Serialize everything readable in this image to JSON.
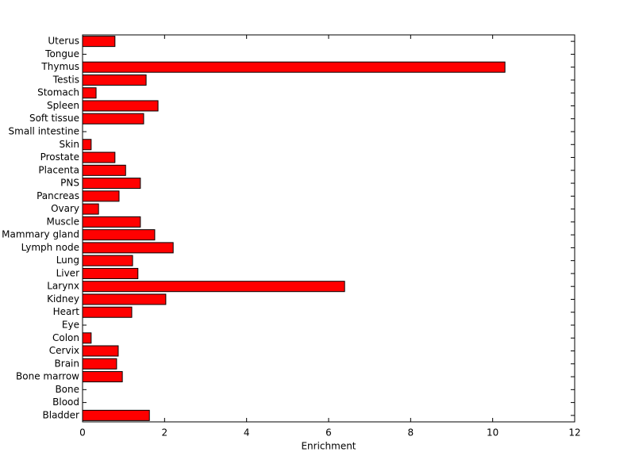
{
  "chart_data": {
    "type": "barh",
    "xlabel": "Enrichment",
    "categories": [
      "Bladder",
      "Blood",
      "Bone",
      "Bone marrow",
      "Brain",
      "Cervix",
      "Colon",
      "Eye",
      "Heart",
      "Kidney",
      "Larynx",
      "Liver",
      "Lung",
      "Lymph node",
      "Mammary gland",
      "Muscle",
      "Ovary",
      "Pancreas",
      "PNS",
      "Placenta",
      "Prostate",
      "Skin",
      "Small intestine",
      "Soft tissue",
      "Spleen",
      "Stomach",
      "Testis",
      "Thymus",
      "Tongue",
      "Uterus"
    ],
    "values": [
      1.63,
      0,
      0,
      0.97,
      0.83,
      0.87,
      0.21,
      0,
      1.2,
      2.03,
      6.39,
      1.35,
      1.22,
      2.21,
      1.76,
      1.41,
      0.39,
      0.89,
      1.41,
      1.05,
      0.79,
      0.21,
      0,
      1.49,
      1.84,
      0.33,
      1.55,
      10.3,
      0,
      0.79
    ],
    "color": "#ff0000",
    "xlim": [
      0,
      12
    ],
    "xticks": [
      0,
      2,
      4,
      6,
      8,
      10,
      12
    ]
  }
}
